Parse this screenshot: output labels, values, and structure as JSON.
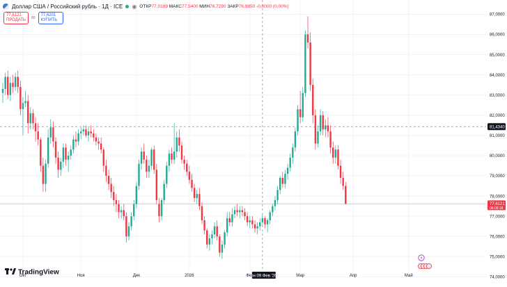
{
  "header": {
    "symbol": "Доллар США / Российский рубль · 1Д · ICE",
    "open_label": "ОТКР",
    "open": "77,0189",
    "high_label": "МАКС",
    "high": "77,5400",
    "low_label": "МИН",
    "low": "76,7290",
    "close_label": "ЗАКР",
    "close": "76,9850",
    "change": "-0,0000 (0,00%)"
  },
  "trade": {
    "sell_price": "77,6121",
    "sell_label": "ПРОДАТЬ",
    "spread": "80",
    "buy_price": "77,6201",
    "buy_label": "КУПИТЬ"
  },
  "branding": {
    "logo_text": "TradingView"
  },
  "colors": {
    "up": "#22ab94",
    "down": "#f23645",
    "grid": "#f0f3fa",
    "crosshair": "#9598a1"
  },
  "chart_data": {
    "type": "candlestick",
    "y_axis": {
      "ticks": [
        "87,0000",
        "86,0000",
        "85,0000",
        "84,0000",
        "83,0000",
        "82,0000",
        "81,0000",
        "80,0000",
        "79,0000",
        "78,0000",
        "77,0000",
        "76,0000",
        "75,0000",
        "74,0000"
      ],
      "range": [
        73.6,
        87.6
      ]
    },
    "x_axis": {
      "ticks": [
        {
          "label": "Окт",
          "index": 8
        },
        {
          "label": "Ноя",
          "index": 31
        },
        {
          "label": "Дек",
          "index": 53
        },
        {
          "label": "2026",
          "index": 74
        },
        {
          "label": "Фев",
          "index": 98
        },
        {
          "label": "Мар",
          "index": 118
        },
        {
          "label": "Апр",
          "index": 139
        },
        {
          "label": "Май",
          "index": 161
        }
      ]
    },
    "crosshair": {
      "x_label": "пн 09 Фев '26",
      "x_index": 103,
      "y_label": "81,4340",
      "y_value": 81.434
    },
    "last_price": {
      "value": 77.6121,
      "label": "77,6121",
      "countdown": "06:08:18"
    },
    "candles": [
      [
        83.1,
        83.6,
        82.6,
        83.3
      ],
      [
        83.3,
        84.1,
        83.0,
        83.9
      ],
      [
        83.9,
        84.2,
        82.8,
        83.0
      ],
      [
        83.0,
        83.9,
        82.7,
        83.6
      ],
      [
        83.6,
        84.0,
        83.1,
        83.4
      ],
      [
        83.4,
        84.1,
        83.2,
        83.9
      ],
      [
        83.9,
        84.2,
        83.1,
        83.4
      ],
      [
        83.4,
        83.7,
        82.0,
        82.3
      ],
      [
        82.3,
        82.9,
        81.0,
        82.6
      ],
      [
        82.6,
        83.2,
        82.4,
        82.7
      ],
      [
        82.7,
        83.0,
        81.1,
        81.6
      ],
      [
        81.6,
        82.4,
        81.3,
        82.1
      ],
      [
        82.1,
        82.3,
        81.3,
        81.6
      ],
      [
        81.6,
        81.9,
        80.7,
        81.2
      ],
      [
        81.2,
        81.6,
        80.5,
        80.8
      ],
      [
        80.8,
        80.9,
        79.2,
        79.5
      ],
      [
        79.5,
        79.9,
        78.2,
        78.6
      ],
      [
        78.6,
        79.8,
        78.2,
        79.6
      ],
      [
        79.6,
        81.3,
        79.4,
        80.9
      ],
      [
        80.9,
        81.8,
        80.6,
        81.4
      ],
      [
        81.4,
        81.7,
        80.4,
        80.7
      ],
      [
        80.7,
        80.9,
        79.6,
        79.9
      ],
      [
        79.9,
        80.2,
        78.9,
        79.3
      ],
      [
        79.3,
        79.9,
        79.0,
        79.7
      ],
      [
        79.7,
        80.6,
        79.4,
        80.4
      ],
      [
        80.4,
        80.6,
        79.5,
        79.8
      ],
      [
        79.8,
        80.2,
        79.2,
        80.0
      ],
      [
        80.0,
        80.5,
        79.8,
        80.3
      ],
      [
        80.3,
        81.0,
        80.1,
        80.8
      ],
      [
        80.8,
        81.2,
        80.4,
        80.7
      ],
      [
        80.7,
        81.3,
        80.5,
        81.1
      ],
      [
        81.1,
        81.4,
        80.8,
        81.2
      ],
      [
        81.2,
        81.5,
        81.0,
        81.3
      ],
      [
        81.3,
        81.5,
        80.9,
        81.0
      ],
      [
        81.0,
        81.4,
        80.7,
        81.2
      ],
      [
        81.2,
        81.5,
        80.9,
        81.1
      ],
      [
        81.1,
        81.3,
        80.7,
        80.9
      ],
      [
        80.9,
        81.1,
        80.5,
        80.7
      ],
      [
        80.7,
        80.9,
        80.3,
        80.6
      ],
      [
        80.6,
        80.9,
        80.1,
        80.3
      ],
      [
        80.3,
        80.4,
        79.2,
        79.5
      ],
      [
        79.5,
        79.8,
        78.7,
        79.0
      ],
      [
        79.0,
        79.3,
        78.3,
        78.6
      ],
      [
        78.6,
        78.9,
        77.9,
        78.2
      ],
      [
        78.2,
        78.5,
        77.5,
        77.8
      ],
      [
        77.8,
        78.1,
        77.2,
        77.6
      ],
      [
        77.6,
        77.8,
        76.9,
        77.2
      ],
      [
        77.2,
        77.5,
        76.9,
        77.3
      ],
      [
        77.3,
        77.6,
        76.8,
        77.0
      ],
      [
        77.0,
        77.2,
        75.7,
        76.0
      ],
      [
        76.0,
        76.7,
        75.8,
        76.5
      ],
      [
        76.5,
        77.2,
        76.3,
        77.0
      ],
      [
        77.0,
        77.8,
        76.8,
        77.6
      ],
      [
        77.6,
        78.7,
        77.4,
        78.5
      ],
      [
        78.5,
        79.8,
        78.3,
        79.6
      ],
      [
        79.6,
        80.4,
        79.3,
        80.2
      ],
      [
        80.2,
        80.6,
        79.6,
        79.8
      ],
      [
        79.8,
        80.0,
        78.9,
        79.2
      ],
      [
        79.2,
        79.8,
        78.9,
        79.5
      ],
      [
        79.5,
        80.4,
        79.3,
        80.3
      ],
      [
        80.3,
        80.5,
        79.1,
        79.3
      ],
      [
        79.3,
        79.6,
        77.6,
        77.8
      ],
      [
        77.6,
        77.9,
        76.7,
        77.0
      ],
      [
        77.0,
        77.9,
        76.8,
        77.8
      ],
      [
        77.8,
        78.8,
        77.6,
        78.6
      ],
      [
        78.6,
        79.7,
        78.4,
        79.5
      ],
      [
        79.5,
        80.3,
        79.2,
        80.1
      ],
      [
        80.1,
        80.4,
        79.6,
        79.8
      ],
      [
        79.8,
        81.6,
        79.6,
        80.2
      ],
      [
        80.2,
        81.2,
        79.9,
        80.9
      ],
      [
        80.9,
        81.3,
        80.2,
        80.5
      ],
      [
        80.5,
        80.7,
        79.6,
        79.8
      ],
      [
        79.8,
        80.0,
        79.3,
        79.6
      ],
      [
        79.6,
        79.8,
        79.0,
        79.2
      ],
      [
        79.2,
        79.5,
        78.6,
        78.8
      ],
      [
        78.8,
        79.1,
        78.2,
        78.4
      ],
      [
        78.4,
        78.6,
        77.7,
        77.9
      ],
      [
        77.9,
        78.3,
        77.6,
        78.1
      ],
      [
        78.1,
        78.4,
        77.3,
        77.5
      ],
      [
        77.5,
        77.7,
        76.6,
        76.8
      ],
      [
        76.8,
        77.0,
        76.1,
        76.3
      ],
      [
        76.3,
        76.4,
        75.4,
        75.6
      ],
      [
        75.6,
        76.1,
        75.3,
        75.9
      ],
      [
        75.9,
        76.3,
        75.6,
        76.1
      ],
      [
        76.1,
        76.7,
        75.9,
        76.5
      ],
      [
        76.5,
        76.8,
        75.8,
        76.0
      ],
      [
        76.0,
        76.1,
        75.0,
        75.2
      ],
      [
        75.2,
        75.8,
        74.9,
        75.6
      ],
      [
        75.6,
        76.3,
        75.4,
        76.2
      ],
      [
        76.2,
        77.2,
        76.0,
        76.9
      ],
      [
        76.9,
        77.2,
        76.5,
        76.7
      ],
      [
        76.7,
        77.4,
        76.5,
        77.1
      ],
      [
        77.1,
        77.5,
        76.9,
        77.3
      ],
      [
        77.3,
        77.6,
        77.0,
        77.2
      ],
      [
        77.2,
        77.5,
        76.9,
        77.3
      ],
      [
        77.3,
        77.5,
        77.0,
        77.2
      ],
      [
        77.2,
        77.4,
        76.8,
        77.0
      ],
      [
        77.0,
        77.2,
        76.5,
        76.7
      ],
      [
        76.7,
        77.0,
        76.4,
        76.8
      ],
      [
        76.8,
        77.0,
        76.4,
        76.6
      ],
      [
        76.6,
        76.8,
        76.2,
        76.4
      ],
      [
        76.4,
        76.7,
        76.1,
        76.5
      ],
      [
        76.5,
        76.9,
        76.3,
        76.7
      ],
      [
        76.7,
        77.1,
        76.5,
        76.9
      ],
      [
        76.9,
        77.0,
        76.4,
        76.6
      ],
      [
        76.6,
        76.9,
        76.2,
        76.8
      ],
      [
        76.8,
        77.3,
        76.6,
        77.2
      ],
      [
        77.2,
        77.6,
        77.0,
        77.5
      ],
      [
        77.5,
        78.0,
        77.3,
        77.8
      ],
      [
        77.8,
        78.5,
        77.6,
        78.3
      ],
      [
        78.3,
        79.0,
        78.1,
        78.9
      ],
      [
        78.9,
        79.2,
        78.4,
        78.6
      ],
      [
        78.6,
        79.3,
        78.4,
        79.1
      ],
      [
        79.1,
        79.6,
        78.8,
        79.4
      ],
      [
        79.4,
        80.1,
        79.2,
        79.9
      ],
      [
        79.9,
        80.6,
        79.6,
        80.4
      ],
      [
        80.4,
        81.4,
        80.2,
        81.2
      ],
      [
        81.2,
        82.5,
        81.0,
        82.3
      ],
      [
        82.3,
        83.2,
        81.6,
        81.9
      ],
      [
        81.9,
        83.4,
        81.7,
        83.1
      ],
      [
        83.1,
        86.2,
        82.9,
        86.0
      ],
      [
        86.0,
        86.9,
        85.3,
        85.6
      ],
      [
        85.6,
        86.1,
        83.2,
        83.5
      ],
      [
        83.5,
        83.8,
        81.6,
        82.0
      ],
      [
        82.0,
        82.3,
        80.3,
        80.6
      ],
      [
        80.6,
        81.5,
        80.4,
        81.2
      ],
      [
        81.2,
        82.3,
        81.0,
        82.0
      ],
      [
        82.0,
        82.2,
        81.0,
        81.3
      ],
      [
        81.3,
        81.8,
        80.9,
        81.5
      ],
      [
        81.5,
        81.9,
        80.9,
        81.2
      ],
      [
        81.2,
        81.5,
        80.1,
        80.4
      ],
      [
        80.4,
        80.7,
        79.6,
        79.9
      ],
      [
        79.9,
        80.5,
        79.6,
        80.3
      ],
      [
        80.3,
        80.5,
        79.3,
        79.5
      ],
      [
        79.5,
        79.8,
        78.6,
        78.9
      ],
      [
        78.9,
        79.2,
        78.3,
        78.5
      ],
      [
        78.5,
        78.7,
        77.6,
        77.6
      ]
    ]
  }
}
